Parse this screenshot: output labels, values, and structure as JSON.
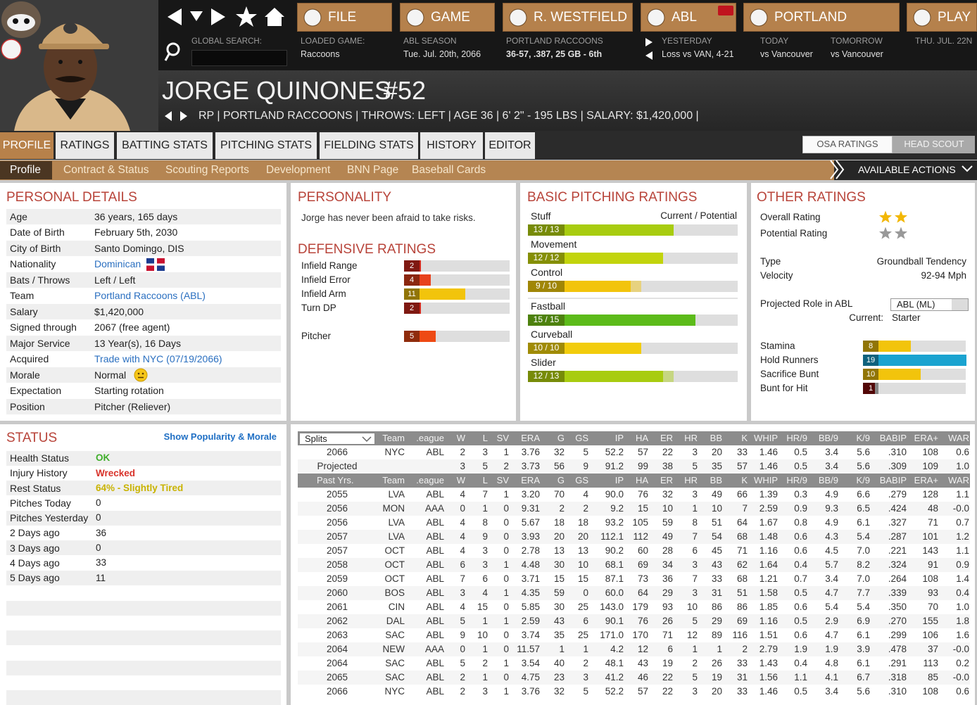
{
  "nav": {
    "buttons": [
      "FILE",
      "GAME",
      "R. WESTFIELD",
      "ABL",
      "PORTLAND",
      "PLAY"
    ],
    "search_label": "GLOBAL SEARCH:",
    "info": [
      {
        "label": "LOADED GAME:",
        "value": "Raccoons"
      },
      {
        "label": "ABL SEASON",
        "value": "Tue. Jul. 20th, 2066"
      },
      {
        "label": "PORTLAND RACCOONS",
        "value": "36-57, .387, 25 GB - 6th"
      },
      {
        "label": "YESTERDAY",
        "value": "Loss vs VAN, 4-21"
      },
      {
        "label": "TODAY",
        "value": "vs Vancouver"
      },
      {
        "label": "TOMORROW",
        "value": "vs Vancouver"
      },
      {
        "label": "THU. JUL. 22N"
      }
    ]
  },
  "player": {
    "name": "JORGE QUINONES",
    "number": "#52",
    "details": "RP | PORTLAND RACCOONS | THROWS: LEFT | AGE 36 | 6' 2\" - 195 LBS | SALARY: $1,420,000 |"
  },
  "tabs": [
    "PROFILE",
    "RATINGS",
    "BATTING STATS",
    "PITCHING STATS",
    "FIELDING STATS",
    "HISTORY",
    "EDITOR"
  ],
  "scout_view": [
    "OSA RATINGS",
    "HEAD SCOUT"
  ],
  "subtabs": [
    "Profile",
    "Contract & Status",
    "Scouting Reports",
    "Development",
    "BNN Page",
    "Baseball Cards"
  ],
  "actions": "AVAILABLE ACTIONS",
  "personal_details": {
    "title": "PERSONAL DETAILS",
    "rows": [
      [
        "Age",
        "36 years, 165 days"
      ],
      [
        "Date of Birth",
        "February 5th, 2030"
      ],
      [
        "City of Birth",
        "Santo Domingo, DIS"
      ],
      [
        "Nationality",
        "Dominican"
      ],
      [
        "Bats / Throws",
        "Left / Left"
      ],
      [
        "Team",
        "Portland Raccoons (ABL)"
      ],
      [
        "Salary",
        "$1,420,000"
      ],
      [
        "Signed through",
        "2067 (free agent)"
      ],
      [
        "Major Service",
        "13 Year(s), 16 Days"
      ],
      [
        "Acquired",
        "Trade with NYC (07/19/2066)"
      ],
      [
        "Morale",
        "Normal"
      ],
      [
        "Expectation",
        "Starting rotation"
      ],
      [
        "Position",
        "Pitcher (Reliever)"
      ]
    ]
  },
  "personality": {
    "title": "PERSONALITY",
    "text": "Jorge has never been afraid to take risks."
  },
  "defensive_ratings": {
    "title": "DEFENSIVE RATINGS",
    "rows": [
      {
        "label": "Infield Range",
        "value": 2,
        "color": "#d42a1e"
      },
      {
        "label": "Infield Error",
        "value": 4,
        "color": "#e8411c"
      },
      {
        "label": "Infield Arm",
        "value": 11,
        "color": "#f2c40c"
      },
      {
        "label": "Turn DP",
        "value": 2,
        "color": "#d42a1e"
      },
      {
        "label": "Pitcher",
        "value": 5,
        "color": "#ee4a14"
      }
    ]
  },
  "pitching_ratings": {
    "title": "BASIC PITCHING RATINGS",
    "header": "Current / Potential",
    "pitches": [
      {
        "name": "Stuff",
        "current": 13,
        "potential": 13,
        "label": "13 / 13",
        "color": "#a8cc10"
      },
      {
        "name": "Movement",
        "current": 12,
        "potential": 12,
        "label": "12 / 12",
        "color": "#c2d40c"
      },
      {
        "name": "Control",
        "current": 9,
        "potential": 10,
        "label": "9 / 10",
        "color": "#f2c40c"
      },
      {
        "name": "Fastball",
        "current": 15,
        "potential": 15,
        "label": "15 / 15",
        "color": "#5cbb1a"
      },
      {
        "name": "Curveball",
        "current": 10,
        "potential": 10,
        "label": "10 / 10",
        "color": "#f2cc0c"
      },
      {
        "name": "Slider",
        "current": 12,
        "potential": 13,
        "label": "12 / 13",
        "color": "#a8cc10"
      }
    ]
  },
  "other_ratings": {
    "title": "OTHER RATINGS",
    "overall_label": "Overall Rating",
    "overall_stars": 2,
    "potential_label": "Potential Rating",
    "potential_stars": 2,
    "type_label": "Type",
    "type": "Groundball Tendency",
    "velocity_label": "Velocity",
    "velocity": "92-94 Mph",
    "role_label": "Projected Role in ABL",
    "role": "ABL (ML)",
    "current_label": "Current:",
    "current": "Starter",
    "bars": [
      {
        "label": "Stamina",
        "value": 8,
        "color": "#f2c40c"
      },
      {
        "label": "Hold Runners",
        "value": 19,
        "color": "#1aa3d0"
      },
      {
        "label": "Sacrifice Bunt",
        "value": 10,
        "color": "#f2c40c"
      },
      {
        "label": "Bunt for Hit",
        "value": 1,
        "color": "#8a0d0d"
      }
    ]
  },
  "status": {
    "title": "STATUS",
    "link": "Show Popularity & Morale",
    "rows": [
      [
        "Health Status",
        "OK"
      ],
      [
        "Injury History",
        "Wrecked"
      ],
      [
        "Rest Status",
        "64% - Slightly Tired"
      ],
      [
        "Pitches Today",
        "0"
      ],
      [
        "Pitches Yesterday",
        "0"
      ],
      [
        "2 Days ago",
        "36"
      ],
      [
        "3 Days ago",
        "0"
      ],
      [
        "4 Days ago",
        "33"
      ],
      [
        "5 Days ago",
        "11"
      ]
    ]
  },
  "stats": {
    "splits": "Splits",
    "header": [
      "Team",
      ".eague",
      "W",
      "L",
      "SV",
      "ERA",
      "G",
      "GS",
      "IP",
      "HA",
      "ER",
      "HR",
      "BB",
      "K",
      "WHIP",
      "HR/9",
      "BB/9",
      "K/9",
      "BABIP",
      "ERA+",
      "WAR"
    ],
    "rows": [
      [
        "2066",
        "NYC",
        "ABL",
        "2",
        "3",
        "1",
        "3.76",
        "32",
        "5",
        "52.2",
        "57",
        "22",
        "3",
        "20",
        "33",
        "1.46",
        "0.5",
        "3.4",
        "5.6",
        ".310",
        "108",
        "0.6"
      ],
      [
        "Projected",
        null,
        null,
        "3",
        "5",
        "2",
        "3.73",
        "56",
        "9",
        "91.2",
        "99",
        "38",
        "5",
        "35",
        "57",
        "1.46",
        "0.5",
        "3.4",
        "5.6",
        ".309",
        "109",
        "1.0"
      ]
    ],
    "past_header": [
      "Past Yrs.",
      "Team",
      ".eague",
      "W",
      "L",
      "SV",
      "ERA",
      "G",
      "GS",
      "IP",
      "HA",
      "ER",
      "HR",
      "BB",
      "K",
      "WHIP",
      "HR/9",
      "BB/9",
      "K/9",
      "BABIP",
      "ERA+",
      "WAR"
    ],
    "past_rows": [
      [
        "2055",
        "LVA",
        "ABL",
        "4",
        "7",
        "1",
        "3.20",
        "70",
        "4",
        "90.0",
        "76",
        "32",
        "3",
        "49",
        "66",
        "1.39",
        "0.3",
        "4.9",
        "6.6",
        ".279",
        "128",
        "1.1"
      ],
      [
        "2056",
        "MON",
        "AAA",
        "0",
        "1",
        "0",
        "9.31",
        "2",
        "2",
        "9.2",
        "15",
        "10",
        "1",
        "10",
        "7",
        "2.59",
        "0.9",
        "9.3",
        "6.5",
        ".424",
        "48",
        "-0.0"
      ],
      [
        "2056",
        "LVA",
        "ABL",
        "4",
        "8",
        "0",
        "5.67",
        "18",
        "18",
        "93.2",
        "105",
        "59",
        "8",
        "51",
        "64",
        "1.67",
        "0.8",
        "4.9",
        "6.1",
        ".327",
        "71",
        "0.7"
      ],
      [
        "2057",
        "LVA",
        "ABL",
        "4",
        "9",
        "0",
        "3.93",
        "20",
        "20",
        "112.1",
        "112",
        "49",
        "7",
        "54",
        "68",
        "1.48",
        "0.6",
        "4.3",
        "5.4",
        ".287",
        "101",
        "1.2"
      ],
      [
        "2057",
        "OCT",
        "ABL",
        "4",
        "3",
        "0",
        "2.78",
        "13",
        "13",
        "90.2",
        "60",
        "28",
        "6",
        "45",
        "71",
        "1.16",
        "0.6",
        "4.5",
        "7.0",
        ".221",
        "143",
        "1.1"
      ],
      [
        "2058",
        "OCT",
        "ABL",
        "6",
        "3",
        "1",
        "4.48",
        "30",
        "10",
        "68.1",
        "69",
        "34",
        "3",
        "43",
        "62",
        "1.64",
        "0.4",
        "5.7",
        "8.2",
        ".324",
        "91",
        "0.9"
      ],
      [
        "2059",
        "OCT",
        "ABL",
        "7",
        "6",
        "0",
        "3.71",
        "15",
        "15",
        "87.1",
        "73",
        "36",
        "7",
        "33",
        "68",
        "1.21",
        "0.7",
        "3.4",
        "7.0",
        ".264",
        "108",
        "1.4"
      ],
      [
        "2060",
        "BOS",
        "ABL",
        "3",
        "4",
        "1",
        "4.35",
        "59",
        "0",
        "60.0",
        "64",
        "29",
        "3",
        "31",
        "51",
        "1.58",
        "0.5",
        "4.7",
        "7.7",
        ".339",
        "93",
        "0.4"
      ],
      [
        "2061",
        "CIN",
        "ABL",
        "4",
        "15",
        "0",
        "5.85",
        "30",
        "25",
        "143.0",
        "179",
        "93",
        "10",
        "86",
        "86",
        "1.85",
        "0.6",
        "5.4",
        "5.4",
        ".350",
        "70",
        "1.0"
      ],
      [
        "2062",
        "DAL",
        "ABL",
        "5",
        "1",
        "1",
        "2.59",
        "43",
        "6",
        "90.1",
        "76",
        "26",
        "5",
        "29",
        "69",
        "1.16",
        "0.5",
        "2.9",
        "6.9",
        ".270",
        "155",
        "1.8"
      ],
      [
        "2063",
        "SAC",
        "ABL",
        "9",
        "10",
        "0",
        "3.74",
        "35",
        "25",
        "171.0",
        "170",
        "71",
        "12",
        "89",
        "116",
        "1.51",
        "0.6",
        "4.7",
        "6.1",
        ".299",
        "106",
        "1.6"
      ],
      [
        "2064",
        "NEW",
        "AAA",
        "0",
        "1",
        "0",
        "11.57",
        "1",
        "1",
        "4.2",
        "12",
        "6",
        "1",
        "1",
        "2",
        "2.79",
        "1.9",
        "1.9",
        "3.9",
        ".478",
        "37",
        "-0.0"
      ],
      [
        "2064",
        "SAC",
        "ABL",
        "5",
        "2",
        "1",
        "3.54",
        "40",
        "2",
        "48.1",
        "43",
        "19",
        "2",
        "26",
        "33",
        "1.43",
        "0.4",
        "4.8",
        "6.1",
        ".291",
        "113",
        "0.2"
      ],
      [
        "2065",
        "SAC",
        "ABL",
        "2",
        "1",
        "0",
        "4.75",
        "23",
        "3",
        "41.2",
        "46",
        "22",
        "5",
        "19",
        "31",
        "1.56",
        "1.1",
        "4.1",
        "6.7",
        ".318",
        "85",
        "-0.0"
      ],
      [
        "2066",
        "NYC",
        "ABL",
        "2",
        "3",
        "1",
        "3.76",
        "32",
        "5",
        "52.2",
        "57",
        "22",
        "3",
        "20",
        "33",
        "1.46",
        "0.5",
        "3.4",
        "5.6",
        ".310",
        "108",
        "0.6"
      ]
    ]
  }
}
